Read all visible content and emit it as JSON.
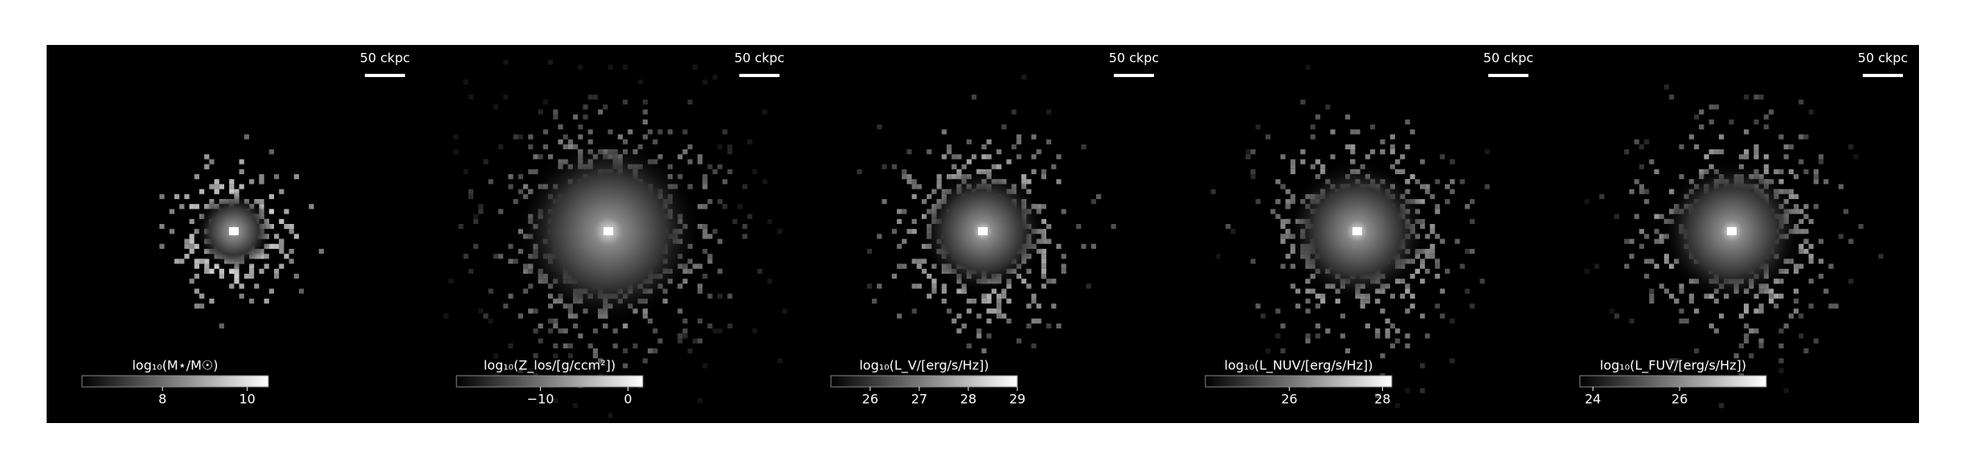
{
  "panels": [
    {
      "scale_bar": "50 ckpc",
      "colorbar": {
        "label": "log₁₀(M⋆/M☉)",
        "lim": [
          6.1,
          10.5
        ],
        "ticks": [
          8,
          10
        ]
      }
    },
    {
      "scale_bar": "50 ckpc",
      "colorbar": {
        "label": "log₁₀(Z_los/[g/ccm²])",
        "lim": [
          -19.6,
          1.7
        ],
        "ticks": [
          {
            "value": -10,
            "label": "−10"
          },
          0
        ]
      }
    },
    {
      "scale_bar": "50 ckpc",
      "colorbar": {
        "label": "log₁₀(L_V/[erg/s/Hz])",
        "lim": [
          25.2,
          29
        ],
        "ticks": [
          26,
          27,
          28,
          29
        ]
      }
    },
    {
      "scale_bar": "50 ckpc",
      "colorbar": {
        "label": "log₁₀(L_NUV/[erg/s/Hz])",
        "lim": [
          24.2,
          28.2
        ],
        "ticks": [
          26,
          28
        ]
      }
    },
    {
      "scale_bar": "50 ckpc",
      "colorbar": {
        "label": "log₁₀(L_FUV/[erg/s/Hz])",
        "lim": [
          23.7,
          28.0
        ],
        "ticks": [
          24,
          26
        ]
      }
    }
  ]
}
